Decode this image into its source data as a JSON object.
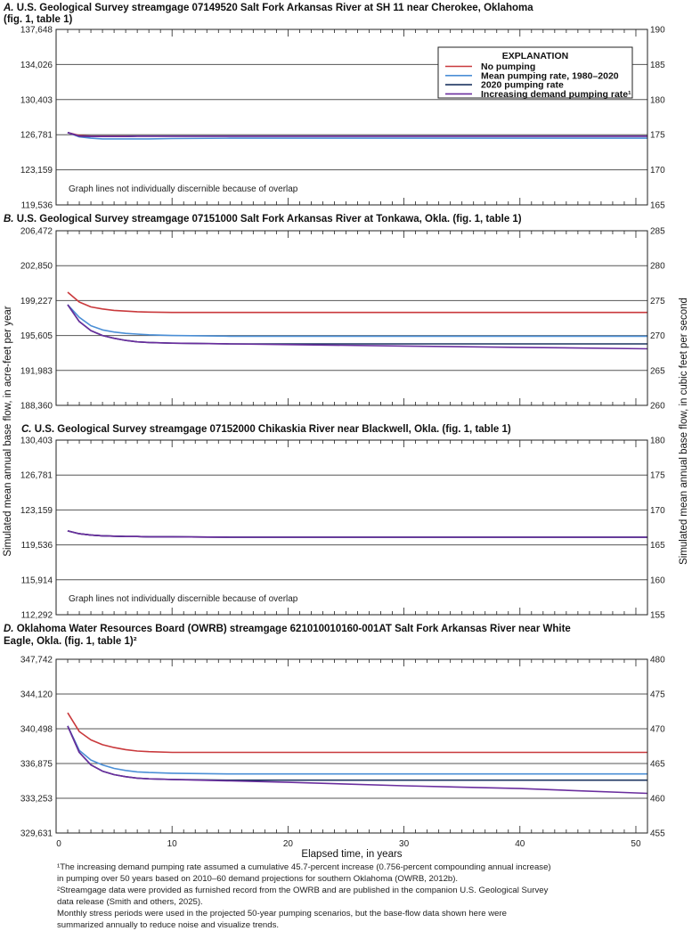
{
  "chart_data": {
    "type": "line",
    "xlabel": "Elapsed time, in years",
    "ylabel_left": "Simulated mean annual base flow, in acre-feet per year",
    "ylabel_right": "Simulated mean annual base flow, in cubic feet per second",
    "xlim": [
      0,
      51
    ],
    "xticks": [
      "0",
      "10",
      "20",
      "30",
      "40",
      "50"
    ],
    "x": [
      1,
      2,
      3,
      4,
      5,
      6,
      7,
      8,
      10,
      15,
      20,
      30,
      40,
      51
    ],
    "legend": {
      "title": "EXPLANATION",
      "placement": "top-right",
      "entries": [
        {
          "name": "No pumping",
          "color": "#c9393c"
        },
        {
          "name": "Mean pumping rate, 1980–2020",
          "color": "#4b8fd6"
        },
        {
          "name": "2020 pumping rate",
          "color": "#1c3560"
        },
        {
          "name": "Increasing demand pumping rate¹",
          "color": "#6a2e9e"
        }
      ]
    },
    "panels": [
      {
        "letter": "A.",
        "title": [
          "U.S. Geological Survey streamgage 07149520 Salt Fork Arkansas River at SH 11 near Cherokee, Oklahoma",
          "(fig. 1, table 1)"
        ],
        "ylim_cfs": [
          165,
          190
        ],
        "left_ticks": [
          "119,536",
          "123,159",
          "126,781",
          "130,403",
          "134,026",
          "137,648"
        ],
        "right_ticks": [
          "165",
          "170",
          "175",
          "180",
          "185",
          "190"
        ],
        "note": "Graph lines not individually discernible because of overlap",
        "series": [
          [
            175.3,
            174.9,
            174.8,
            174.8,
            174.8,
            174.8,
            174.8,
            174.8,
            174.8,
            174.8,
            174.8,
            174.8,
            174.8,
            174.8
          ],
          [
            175.3,
            174.7,
            174.5,
            174.4,
            174.4,
            174.4,
            174.4,
            174.4,
            174.45,
            174.5,
            174.5,
            174.5,
            174.5,
            174.5
          ],
          [
            175.3,
            174.8,
            174.75,
            174.75,
            174.75,
            174.75,
            174.8,
            174.8,
            174.8,
            174.8,
            174.8,
            174.8,
            174.8,
            174.8
          ],
          [
            175.3,
            174.8,
            174.75,
            174.75,
            174.75,
            174.75,
            174.8,
            174.8,
            174.8,
            174.8,
            174.8,
            174.8,
            174.8,
            174.8
          ]
        ]
      },
      {
        "letter": "B.",
        "title": [
          "U.S. Geological Survey streamgage 07151000 Salt Fork Arkansas River at Tonkawa, Okla. (fig. 1, table 1)"
        ],
        "ylim_cfs": [
          260,
          285
        ],
        "left_ticks": [
          "188,360",
          "191,983",
          "195,605",
          "199,227",
          "202,850",
          "206,472"
        ],
        "right_ticks": [
          "260",
          "265",
          "270",
          "275",
          "280",
          "285"
        ],
        "series": [
          [
            276.2,
            274.8,
            274.1,
            273.8,
            273.6,
            273.5,
            273.4,
            273.35,
            273.3,
            273.3,
            273.3,
            273.3,
            273.3,
            273.3
          ],
          [
            274.4,
            272.6,
            271.4,
            270.8,
            270.5,
            270.3,
            270.2,
            270.1,
            270.0,
            269.9,
            269.9,
            269.9,
            269.9,
            269.9
          ],
          [
            274.4,
            272.0,
            270.7,
            270.0,
            269.6,
            269.3,
            269.1,
            269.0,
            268.9,
            268.8,
            268.8,
            268.8,
            268.8,
            268.8
          ],
          [
            274.4,
            272.0,
            270.7,
            270.0,
            269.6,
            269.3,
            269.1,
            269.0,
            268.9,
            268.8,
            268.7,
            268.5,
            268.3,
            268.1
          ]
        ]
      },
      {
        "letter": "C.",
        "title": [
          "U.S. Geological Survey streamgage 07152000 Chikaskia River near Blackwell, Okla. (fig. 1, table 1)"
        ],
        "ylim_cfs": [
          155,
          180
        ],
        "left_ticks": [
          "112,292",
          "115,914",
          "119,536",
          "123,159",
          "126,781",
          "130,403"
        ],
        "right_ticks": [
          "155",
          "160",
          "165",
          "170",
          "175",
          "180"
        ],
        "note": "Graph lines not individually discernible because of overlap",
        "series": [
          [
            167.0,
            166.6,
            166.4,
            166.3,
            166.25,
            166.2,
            166.2,
            166.15,
            166.15,
            166.1,
            166.1,
            166.1,
            166.1,
            166.1
          ],
          [
            167.0,
            166.6,
            166.4,
            166.3,
            166.25,
            166.2,
            166.2,
            166.15,
            166.15,
            166.1,
            166.1,
            166.1,
            166.1,
            166.1
          ],
          [
            167.0,
            166.6,
            166.4,
            166.3,
            166.25,
            166.2,
            166.2,
            166.15,
            166.15,
            166.1,
            166.1,
            166.1,
            166.1,
            166.1
          ],
          [
            167.0,
            166.6,
            166.4,
            166.3,
            166.25,
            166.2,
            166.2,
            166.15,
            166.15,
            166.1,
            166.1,
            166.1,
            166.1,
            166.1
          ]
        ]
      },
      {
        "letter": "D.",
        "title": [
          "Oklahoma Water Resources Board (OWRB) streamgage 621010010160-001AT Salt Fork Arkansas River near White",
          "Eagle, Okla. (fig. 1, table 1)²"
        ],
        "ylim_cfs": [
          455,
          480
        ],
        "left_ticks": [
          "329,631",
          "333,253",
          "336,875",
          "340,498",
          "344,120",
          "347,742"
        ],
        "right_ticks": [
          "455",
          "460",
          "465",
          "470",
          "475",
          "480"
        ],
        "series": [
          [
            472.3,
            469.6,
            468.4,
            467.7,
            467.3,
            467.0,
            466.8,
            466.7,
            466.6,
            466.6,
            466.6,
            466.6,
            466.6,
            466.6
          ],
          [
            470.4,
            466.9,
            465.5,
            464.8,
            464.3,
            464.0,
            463.8,
            463.7,
            463.6,
            463.5,
            463.5,
            463.5,
            463.5,
            463.5
          ],
          [
            470.4,
            466.6,
            464.8,
            463.9,
            463.4,
            463.1,
            462.9,
            462.8,
            462.7,
            462.6,
            462.6,
            462.6,
            462.6,
            462.6
          ],
          [
            470.4,
            466.6,
            464.8,
            463.9,
            463.4,
            463.1,
            462.9,
            462.8,
            462.7,
            462.5,
            462.3,
            461.8,
            461.4,
            460.7
          ]
        ]
      }
    ]
  },
  "footnotes": [
    "¹The increasing demand pumping rate assumed a cumulative 45.7-percent increase (0.756-percent compounding annual increase)",
    "in pumping over 50 years based on 2010–60 demand projections for southern Oklahoma (OWRB, 2012b).",
    "²Streamgage data were provided as furnished record from the OWRB and are published in the companion U.S. Geological Survey",
    "data release (Smith and others, 2025).",
    "Monthly stress periods were used in the projected 50-year pumping scenarios, but the base-flow data shown here were",
    "summarized annually to reduce noise and visualize trends."
  ]
}
